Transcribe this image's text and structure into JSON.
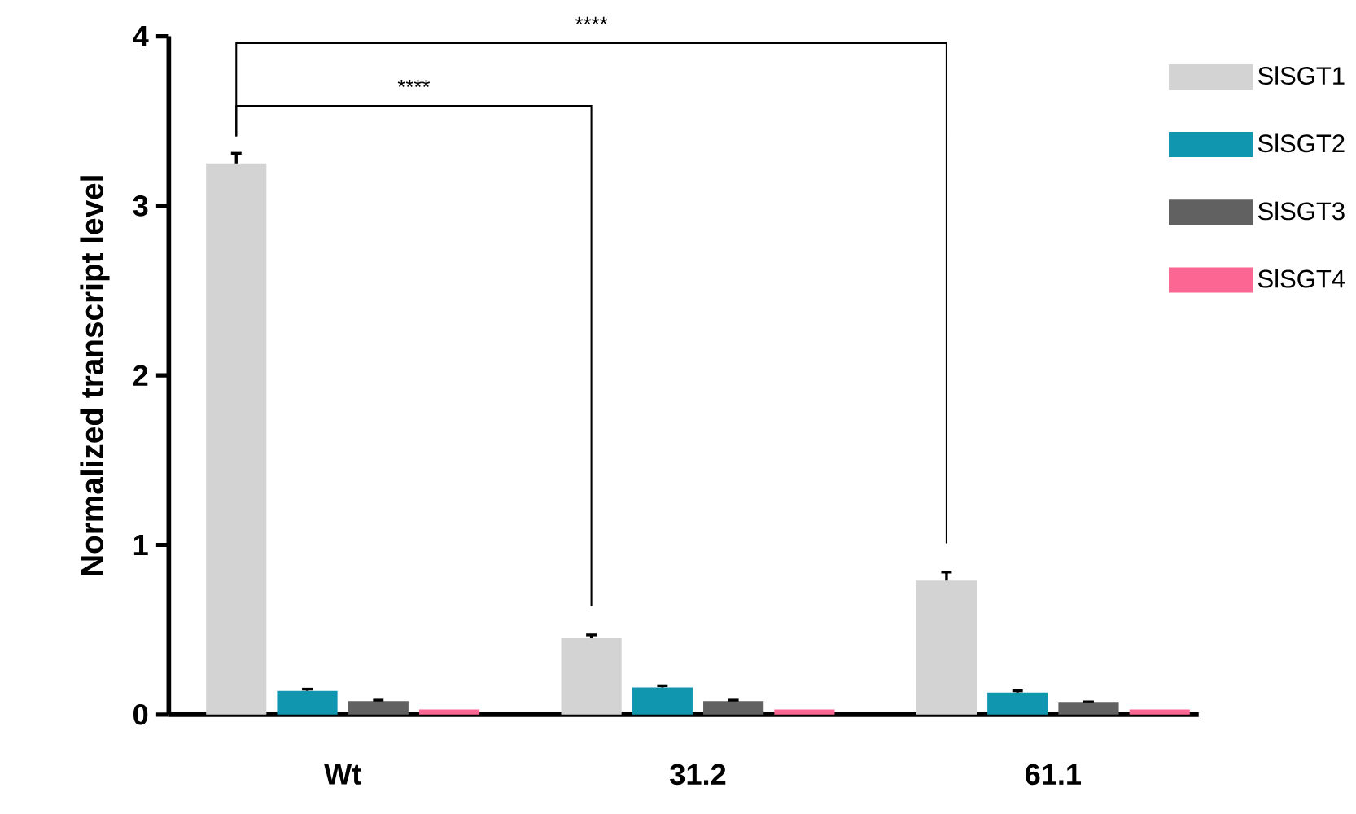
{
  "chart_data": {
    "type": "bar",
    "ylabel": "Normalized transcript level",
    "categories": [
      "Wt",
      "31.2",
      "61.1"
    ],
    "series": [
      {
        "name": "SlSGT1",
        "color": "#d3d3d3",
        "values": [
          3.25,
          0.45,
          0.79
        ],
        "errors": [
          0.06,
          0.02,
          0.05
        ]
      },
      {
        "name": "SlSGT2",
        "color": "#1196b0",
        "values": [
          0.14,
          0.16,
          0.13
        ],
        "errors": [
          0.01,
          0.01,
          0.01
        ]
      },
      {
        "name": "SlSGT3",
        "color": "#616161",
        "values": [
          0.08,
          0.08,
          0.07
        ],
        "errors": [
          0.005,
          0.005,
          0.005
        ]
      },
      {
        "name": "SlSGT4",
        "color": "#fc6693",
        "values": [
          0.03,
          0.03,
          0.03
        ]
      }
    ],
    "ylim": [
      0,
      4
    ],
    "yticks": [
      0,
      1,
      2,
      3,
      4
    ],
    "grid": false,
    "legend": "top right",
    "annotations": [
      "****",
      "****"
    ]
  }
}
